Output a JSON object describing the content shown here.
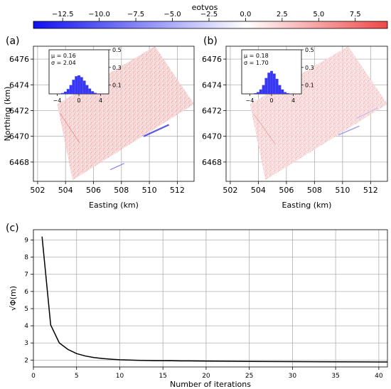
{
  "colorbar": {
    "label": "eotvos",
    "ticks": [
      "−12.5",
      "−10.0",
      "−7.5",
      "−5.0",
      "−2.5",
      "0.0",
      "2.5",
      "5.0",
      "7.5"
    ],
    "tick_values": [
      -12.5,
      -10.0,
      -7.5,
      -5.0,
      -2.5,
      0.0,
      2.5,
      5.0,
      7.5
    ],
    "range": [
      -14.5,
      9.7
    ],
    "colors": {
      "negative": "#1414f0",
      "zero": "#ffffff",
      "positive": "#f04848"
    }
  },
  "chart_data": [
    {
      "type": "heatmap",
      "panel_label": "(a)",
      "xlabel": "Easting (km)",
      "ylabel": "Northing (km)",
      "xlim": [
        501.7,
        513.2
      ],
      "ylim": [
        6466.5,
        6477.0
      ],
      "x_ticks": [
        502,
        504,
        506,
        508,
        510,
        512
      ],
      "y_ticks": [
        6468,
        6470,
        6472,
        6474,
        6476
      ],
      "grid": true,
      "survey_region_corners": [
        [
          503.4,
          6472.5
        ],
        [
          510.4,
          6477.0
        ],
        [
          513.2,
          6472.5
        ],
        [
          504.5,
          6466.6
        ]
      ],
      "inset_histogram": {
        "stats": [
          "μ = 0.16",
          "σ = 2.04"
        ],
        "x_ticks": [
          "−4",
          "0",
          "4"
        ],
        "y_ticks": [
          "0.1",
          "0.3",
          "0.5"
        ],
        "xlim": [
          -5.5,
          5.5
        ],
        "ylim": [
          0,
          0.5
        ],
        "bin_centers": [
          -3.5,
          -3.0,
          -2.5,
          -2.0,
          -1.5,
          -1.0,
          -0.5,
          0.0,
          0.5,
          1.0,
          1.5,
          2.0,
          2.5,
          3.0,
          3.5,
          4.0
        ],
        "values": [
          0.005,
          0.01,
          0.025,
          0.055,
          0.1,
          0.16,
          0.2,
          0.21,
          0.19,
          0.15,
          0.1,
          0.06,
          0.03,
          0.012,
          0.005,
          0.002
        ]
      }
    },
    {
      "type": "heatmap",
      "panel_label": "(b)",
      "xlabel": "Easting (km)",
      "ylabel": "",
      "xlim": [
        501.7,
        513.2
      ],
      "ylim": [
        6466.5,
        6477.0
      ],
      "x_ticks": [
        502,
        504,
        506,
        508,
        510,
        512
      ],
      "y_ticks": [
        6468,
        6470,
        6472,
        6474,
        6476
      ],
      "grid": true,
      "survey_region_corners": [
        [
          503.4,
          6472.5
        ],
        [
          510.4,
          6477.0
        ],
        [
          513.2,
          6472.5
        ],
        [
          504.5,
          6466.6
        ]
      ],
      "inset_histogram": {
        "stats": [
          "μ = 0.18",
          "σ = 1.70"
        ],
        "x_ticks": [
          "−4",
          "0",
          "4"
        ],
        "y_ticks": [
          "0.1",
          "0.3",
          "0.5"
        ],
        "xlim": [
          -5.5,
          5.5
        ],
        "ylim": [
          0,
          0.5
        ],
        "bin_centers": [
          -3.5,
          -3.0,
          -2.5,
          -2.0,
          -1.5,
          -1.0,
          -0.5,
          0.0,
          0.5,
          1.0,
          1.5,
          2.0,
          2.5,
          3.0,
          3.5,
          4.0
        ],
        "values": [
          0.003,
          0.008,
          0.02,
          0.05,
          0.1,
          0.18,
          0.24,
          0.26,
          0.23,
          0.17,
          0.1,
          0.05,
          0.02,
          0.008,
          0.003,
          0.001
        ]
      }
    },
    {
      "type": "line",
      "panel_label": "(c)",
      "xlabel": "Number of iterations",
      "ylabel": "√Φ(m)",
      "xlim": [
        0,
        41
      ],
      "ylim": [
        1.6,
        9.6
      ],
      "x_ticks": [
        0,
        5,
        10,
        15,
        20,
        25,
        30,
        35,
        40
      ],
      "y_ticks": [
        2,
        3,
        4,
        5,
        6,
        7,
        8,
        9
      ],
      "grid": true,
      "x": [
        1,
        2,
        3,
        4,
        5,
        6,
        7,
        8,
        9,
        10,
        12,
        14,
        16,
        18,
        20,
        25,
        30,
        35,
        40,
        41
      ],
      "y": [
        9.2,
        4.05,
        3.0,
        2.62,
        2.38,
        2.24,
        2.15,
        2.09,
        2.05,
        2.02,
        1.99,
        1.97,
        1.96,
        1.95,
        1.94,
        1.92,
        1.91,
        1.9,
        1.89,
        1.89
      ]
    }
  ]
}
